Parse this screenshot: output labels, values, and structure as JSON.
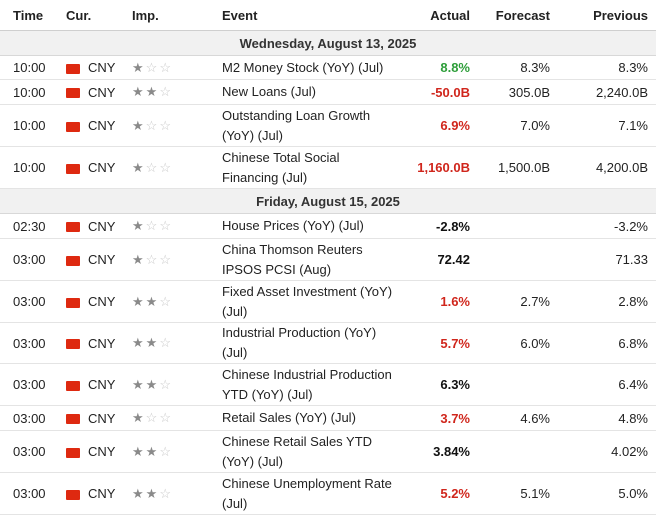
{
  "headers": {
    "time": "Time",
    "currency": "Cur.",
    "importance": "Imp.",
    "event": "Event",
    "actual": "Actual",
    "forecast": "Forecast",
    "previous": "Previous"
  },
  "days": [
    {
      "label": "Wednesday, August 13, 2025",
      "events": [
        {
          "time": "10:00",
          "currency": "CNY",
          "importance": 1,
          "event": "M2 Money Stock (YoY) (Jul)",
          "actual": "8.8%",
          "actual_color": "#2e9e3a",
          "forecast": "8.3%",
          "previous": "8.3%"
        },
        {
          "time": "10:00",
          "currency": "CNY",
          "importance": 2,
          "event": "New Loans (Jul)",
          "actual": "-50.0B",
          "actual_color": "#d0261c",
          "forecast": "305.0B",
          "previous": "2,240.0B"
        },
        {
          "time": "10:00",
          "currency": "CNY",
          "importance": 1,
          "event": "Outstanding Loan Growth (YoY) (Jul)",
          "actual": "6.9%",
          "actual_color": "#d0261c",
          "forecast": "7.0%",
          "previous": "7.1%"
        },
        {
          "time": "10:00",
          "currency": "CNY",
          "importance": 1,
          "event": "Chinese Total Social Financing (Jul)",
          "actual": "1,160.0B",
          "actual_color": "#d0261c",
          "forecast": "1,500.0B",
          "previous": "4,200.0B"
        }
      ]
    },
    {
      "label": "Friday, August 15, 2025",
      "events": [
        {
          "time": "02:30",
          "currency": "CNY",
          "importance": 1,
          "event": "House Prices (YoY) (Jul)",
          "actual": "-2.8%",
          "actual_color": "#111111",
          "forecast": "",
          "previous": "-3.2%"
        },
        {
          "time": "03:00",
          "currency": "CNY",
          "importance": 1,
          "event": "China Thomson Reuters IPSOS PCSI (Aug)",
          "actual": "72.42",
          "actual_color": "#111111",
          "forecast": "",
          "previous": "71.33"
        },
        {
          "time": "03:00",
          "currency": "CNY",
          "importance": 2,
          "event": "Fixed Asset Investment (YoY) (Jul)",
          "actual": "1.6%",
          "actual_color": "#d0261c",
          "forecast": "2.7%",
          "previous": "2.8%"
        },
        {
          "time": "03:00",
          "currency": "CNY",
          "importance": 2,
          "event": "Industrial Production (YoY) (Jul)",
          "actual": "5.7%",
          "actual_color": "#d0261c",
          "forecast": "6.0%",
          "previous": "6.8%"
        },
        {
          "time": "03:00",
          "currency": "CNY",
          "importance": 2,
          "event": "Chinese Industrial Production YTD (YoY) (Jul)",
          "actual": "6.3%",
          "actual_color": "#111111",
          "forecast": "",
          "previous": "6.4%"
        },
        {
          "time": "03:00",
          "currency": "CNY",
          "importance": 1,
          "event": "Retail Sales (YoY) (Jul)",
          "actual": "3.7%",
          "actual_color": "#d0261c",
          "forecast": "4.6%",
          "previous": "4.8%"
        },
        {
          "time": "03:00",
          "currency": "CNY",
          "importance": 2,
          "event": "Chinese Retail Sales YTD (YoY) (Jul)",
          "actual": "3.84%",
          "actual_color": "#111111",
          "forecast": "",
          "previous": "4.02%"
        },
        {
          "time": "03:00",
          "currency": "CNY",
          "importance": 2,
          "event": "Chinese Unemployment Rate (Jul)",
          "actual": "5.2%",
          "actual_color": "#d0261c",
          "forecast": "5.1%",
          "previous": "5.0%"
        }
      ]
    }
  ],
  "icons": {
    "flag": "china-flag-icon",
    "star": "star-icon"
  }
}
